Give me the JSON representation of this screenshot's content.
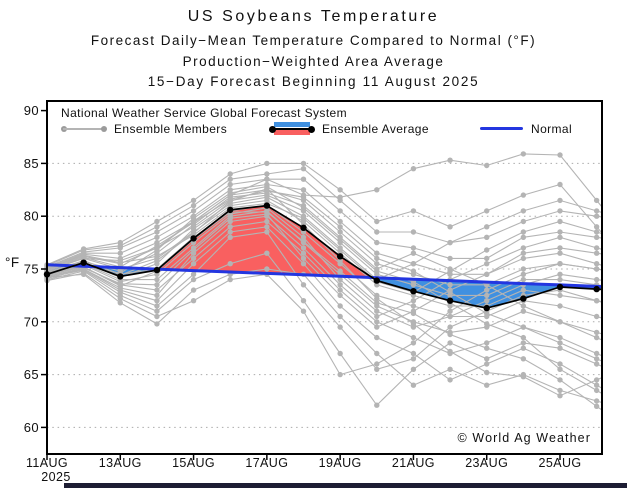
{
  "title": {
    "line1": "US Soybeans Temperature",
    "line2": "Forecast Daily−Mean Temperature Compared to Normal (°F)",
    "line3": "Production−Weighted Area Average",
    "line4": "15−Day Forecast Beginning 11 August 2025"
  },
  "legend": {
    "header": "National Weather Service Global Forecast System",
    "members_label": "Ensemble Members",
    "average_label": "Ensemble Average",
    "normal_label": "Normal"
  },
  "copyright": "© World Ag Weather",
  "chart_data": {
    "type": "line",
    "title": "US Soybeans Temperature",
    "subtitle": "Forecast Daily−Mean Temperature Compared to Normal (°F), Production−Weighted Area Average, 15−Day Forecast Beginning 11 August 2025",
    "x_axis": {
      "tick_labels": [
        "11AUG",
        "13AUG",
        "15AUG",
        "17AUG",
        "19AUG",
        "21AUG",
        "23AUG",
        "25AUG"
      ],
      "tick_days": [
        0,
        2,
        4,
        6,
        8,
        10,
        12,
        14
      ],
      "year_label": "2025"
    },
    "y_axis": {
      "label": "°F",
      "ticks": [
        60,
        65,
        70,
        75,
        80,
        85,
        90
      ],
      "gridlines": [
        60,
        65,
        70,
        75,
        80,
        85
      ],
      "range": [
        57.5,
        91
      ]
    },
    "dates": [
      "11AUG",
      "12AUG",
      "13AUG",
      "14AUG",
      "15AUG",
      "16AUG",
      "17AUG",
      "18AUG",
      "19AUG",
      "20AUG",
      "21AUG",
      "22AUG",
      "23AUG",
      "24AUG",
      "25AUG",
      "26AUG"
    ],
    "ensemble_average": [
      74.5,
      75.6,
      74.3,
      74.9,
      77.9,
      80.6,
      81.0,
      78.9,
      76.2,
      73.9,
      72.9,
      72.0,
      71.3,
      72.2,
      73.3,
      73.1
    ],
    "normal": [
      75.4,
      75.26,
      75.13,
      74.99,
      74.85,
      74.72,
      74.58,
      74.45,
      74.31,
      74.17,
      74.03,
      73.9,
      73.76,
      73.62,
      73.49,
      73.35
    ],
    "ensemble_members": [
      [
        74.9,
        76.0,
        75.8,
        77.0,
        79.5,
        82.0,
        83.5,
        82.0,
        81.8,
        82.5,
        84.5,
        85.3,
        84.8,
        85.9,
        85.8,
        81.5
      ],
      [
        74.0,
        74.8,
        72.5,
        71.0,
        74.0,
        75.5,
        76.5,
        72.0,
        67.0,
        62.1,
        65.5,
        68.0,
        66.5,
        68.0,
        67.5,
        66.0
      ],
      [
        74.2,
        74.5,
        71.8,
        69.8,
        73.0,
        74.5,
        75.0,
        74.5,
        70.5,
        67.0,
        64.0,
        65.5,
        64.0,
        65.0,
        63.5,
        62.5
      ],
      [
        74.3,
        75.0,
        73.0,
        72.0,
        75.5,
        78.5,
        79.0,
        75.5,
        71.5,
        68.5,
        67.0,
        64.5,
        66.0,
        67.5,
        66.0,
        64.0
      ],
      [
        74.5,
        75.2,
        73.5,
        73.0,
        76.0,
        79.0,
        79.5,
        76.5,
        73.0,
        70.0,
        68.5,
        67.0,
        68.0,
        69.5,
        68.5,
        67.0
      ],
      [
        74.6,
        75.5,
        74.0,
        74.0,
        77.0,
        80.0,
        80.5,
        77.5,
        74.5,
        71.5,
        70.0,
        69.0,
        69.5,
        71.0,
        70.0,
        69.0
      ],
      [
        74.7,
        75.8,
        74.5,
        75.0,
        78.0,
        80.5,
        81.0,
        78.5,
        75.5,
        72.5,
        71.5,
        70.5,
        70.5,
        72.0,
        71.5,
        70.5
      ],
      [
        74.8,
        76.0,
        75.0,
        76.0,
        78.5,
        81.0,
        81.5,
        79.5,
        76.5,
        73.5,
        72.5,
        71.5,
        71.5,
        73.0,
        72.5,
        72.0
      ],
      [
        74.9,
        76.2,
        75.5,
        77.0,
        79.0,
        81.5,
        82.0,
        80.5,
        77.5,
        74.5,
        73.5,
        72.5,
        72.5,
        74.0,
        74.0,
        73.5
      ],
      [
        75.0,
        76.4,
        76.0,
        77.5,
        79.5,
        82.0,
        82.5,
        81.5,
        78.5,
        75.5,
        74.5,
        73.5,
        73.5,
        75.0,
        75.5,
        75.0
      ],
      [
        75.1,
        76.5,
        76.5,
        78.0,
        80.0,
        82.5,
        83.0,
        82.5,
        79.5,
        76.5,
        75.5,
        74.5,
        74.5,
        76.5,
        77.0,
        76.5
      ],
      [
        75.2,
        76.6,
        77.0,
        78.5,
        80.5,
        83.0,
        83.5,
        83.5,
        80.5,
        77.5,
        77.0,
        76.0,
        76.0,
        78.0,
        78.5,
        78.0
      ],
      [
        75.3,
        76.8,
        77.2,
        79.0,
        81.0,
        83.5,
        84.0,
        84.5,
        81.5,
        78.5,
        78.5,
        77.5,
        78.0,
        79.5,
        80.5,
        80.0
      ],
      [
        74.4,
        75.4,
        73.8,
        74.5,
        77.5,
        80.2,
        80.8,
        78.0,
        74.0,
        71.0,
        69.5,
        70.5,
        72.0,
        73.5,
        74.5,
        74.0
      ],
      [
        74.2,
        74.9,
        72.8,
        71.5,
        74.5,
        78.0,
        78.5,
        73.5,
        69.5,
        65.5,
        66.5,
        69.5,
        71.0,
        72.5,
        73.0,
        72.0
      ],
      [
        73.9,
        74.6,
        72.2,
        70.5,
        72.0,
        74.0,
        74.5,
        71.0,
        65.0,
        66.0,
        68.0,
        71.0,
        73.0,
        74.5,
        75.5,
        75.0
      ],
      [
        75.4,
        76.9,
        77.5,
        79.5,
        81.5,
        84.0,
        85.0,
        85.0,
        82.5,
        79.5,
        80.5,
        79.0,
        80.5,
        82.0,
        83.0,
        79.0
      ],
      [
        74.1,
        75.0,
        73.2,
        72.5,
        76.5,
        79.5,
        80.0,
        77.0,
        73.5,
        70.5,
        72.0,
        74.0,
        75.5,
        77.0,
        78.0,
        77.0
      ],
      [
        74.6,
        75.6,
        74.2,
        75.5,
        78.8,
        81.2,
        81.8,
        80.0,
        77.0,
        74.0,
        75.5,
        77.5,
        79.0,
        80.5,
        81.5,
        80.5
      ],
      [
        74.7,
        75.7,
        74.8,
        76.5,
        79.2,
        81.8,
        82.2,
        81.0,
        78.0,
        75.0,
        76.5,
        75.0,
        73.5,
        71.5,
        70.0,
        68.5
      ],
      [
        74.3,
        75.1,
        73.6,
        73.5,
        76.8,
        79.8,
        80.2,
        76.0,
        72.5,
        69.5,
        71.0,
        73.0,
        74.5,
        76.0,
        76.5,
        75.5
      ],
      [
        74.5,
        75.3,
        74.6,
        76.8,
        79.8,
        82.2,
        82.8,
        80.8,
        77.8,
        74.8,
        73.8,
        71.8,
        69.8,
        68.5,
        65.5,
        63.5
      ],
      [
        74.8,
        76.1,
        75.2,
        77.2,
        79.4,
        81.6,
        82.4,
        81.8,
        79.0,
        76.0,
        74.8,
        72.8,
        70.8,
        69.5,
        68.0,
        66.5
      ],
      [
        74.4,
        75.2,
        73.4,
        74.8,
        77.8,
        80.4,
        80.4,
        77.6,
        74.8,
        71.8,
        70.8,
        68.8,
        67.5,
        66.5,
        64.5,
        62.0
      ],
      [
        75.0,
        76.3,
        75.6,
        76.2,
        78.2,
        80.8,
        81.2,
        79.8,
        76.8,
        73.8,
        72.8,
        74.8,
        76.8,
        78.5,
        79.5,
        78.5
      ],
      [
        74.6,
        75.4,
        74.4,
        75.8,
        78.4,
        81.4,
        82.6,
        79.2,
        75.8,
        72.2,
        69.8,
        67.2,
        65.2,
        64.8,
        63.0,
        64.5
      ]
    ],
    "colors": {
      "above_normal_fill": "#f96060",
      "below_normal_fill": "#4090e0",
      "normal_line": "#2336e0",
      "ensemble_member": "#b4b4b4",
      "ensemble_average": "#000000",
      "grid": "#ababab",
      "axis": "#000000"
    }
  },
  "bottom_bar": {
    "color": "#1d1d33"
  }
}
